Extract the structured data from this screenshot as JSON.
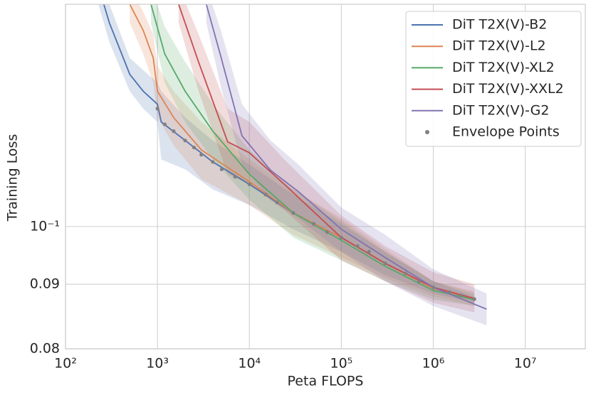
{
  "chart_data": {
    "type": "line",
    "xlabel": "Peta FLOPS",
    "ylabel": "Training Loss",
    "xscale": "log",
    "yscale": "log",
    "grid": true,
    "legend": "upper right",
    "xlim": [
      100,
      45000000
    ],
    "xticks": [
      {
        "value": 100,
        "label": "10²"
      },
      {
        "value": 1000,
        "label": "10³"
      },
      {
        "value": 10000,
        "label": "10⁴"
      },
      {
        "value": 100000,
        "label": "10⁵"
      },
      {
        "value": 1000000,
        "label": "10⁶"
      },
      {
        "value": 10000000,
        "label": "10⁷"
      }
    ],
    "ylim": [
      0.08,
      0.15
    ],
    "yticks": [
      0.08,
      0.09,
      {
        "value": 0.1,
        "label": "10⁻¹"
      }
    ],
    "series": [
      {
        "name": "DiT T2X(V)-B2",
        "color": "#4c72b0",
        "x": [
          200,
          300,
          500,
          700,
          1000,
          1100,
          2000,
          4000,
          10000,
          30000,
          100000,
          300000,
          1000000,
          2800000
        ],
        "values": [
          0.16,
          0.145,
          0.132,
          0.128,
          0.125,
          0.121,
          0.117,
          0.1125,
          0.108,
          0.1025,
          0.098,
          0.0935,
          0.0895,
          0.0875
        ],
        "lower": [
          0.155,
          0.14,
          0.128,
          0.124,
          0.121,
          0.113,
          0.111,
          0.107,
          0.104,
          0.0995,
          0.0955,
          0.0915,
          0.0885,
          0.087
        ],
        "upper": [
          0.165,
          0.15,
          0.136,
          0.133,
          0.13,
          0.128,
          0.122,
          0.117,
          0.112,
          0.106,
          0.1005,
          0.0955,
          0.0905,
          0.088
        ]
      },
      {
        "name": "DiT T2X(V)-L2",
        "color": "#dd8452",
        "x": [
          500,
          700,
          900,
          1000,
          1500,
          3000,
          10000,
          30000,
          100000,
          300000,
          1000000,
          2800000
        ],
        "values": [
          0.15,
          0.143,
          0.136,
          0.128,
          0.122,
          0.115,
          0.1085,
          0.1025,
          0.098,
          0.0935,
          0.0893,
          0.0877
        ],
        "lower": [
          0.145,
          0.137,
          0.13,
          0.122,
          0.116,
          0.109,
          0.104,
          0.0985,
          0.0945,
          0.091,
          0.088,
          0.0865
        ],
        "upper": [
          0.155,
          0.148,
          0.142,
          0.134,
          0.128,
          0.121,
          0.113,
          0.107,
          0.1015,
          0.096,
          0.0905,
          0.0888
        ]
      },
      {
        "name": "DiT T2X(V)-XL2",
        "color": "#55a868",
        "x": [
          850,
          1200,
          2000,
          4000,
          10000,
          30000,
          100000,
          300000,
          1000000,
          2800000
        ],
        "values": [
          0.15,
          0.137,
          0.128,
          0.119,
          0.11,
          0.1025,
          0.0975,
          0.093,
          0.089,
          0.0875
        ],
        "lower": [
          0.145,
          0.13,
          0.121,
          0.113,
          0.105,
          0.098,
          0.094,
          0.0905,
          0.0875,
          0.0865
        ],
        "upper": [
          0.155,
          0.144,
          0.135,
          0.125,
          0.115,
          0.107,
          0.101,
          0.0955,
          0.0905,
          0.0885
        ]
      },
      {
        "name": "DiT T2X(V)-XXL2",
        "color": "#c44e52",
        "x": [
          1700,
          2800,
          5800,
          10000,
          24000,
          100000,
          300000,
          1000000,
          2800000
        ],
        "values": [
          0.15,
          0.135,
          0.1167,
          0.1144,
          0.108,
          0.098,
          0.0935,
          0.0895,
          0.0877
        ],
        "lower": [
          0.145,
          0.128,
          0.11,
          0.108,
          0.103,
          0.094,
          0.0905,
          0.087,
          0.0855
        ],
        "upper": [
          0.155,
          0.142,
          0.124,
          0.121,
          0.113,
          0.102,
          0.0965,
          0.092,
          0.09
        ]
      },
      {
        "name": "DiT T2X(V)-G2",
        "color": "#8172b3",
        "x": [
          3400,
          4900,
          8300,
          17000,
          34000,
          100000,
          300000,
          1000000,
          3800000
        ],
        "values": [
          0.15,
          0.1363,
          0.118,
          0.1108,
          0.1066,
          0.0995,
          0.0945,
          0.0895,
          0.086
        ],
        "lower": [
          0.145,
          0.129,
          0.112,
          0.105,
          0.1015,
          0.0955,
          0.0905,
          0.0865,
          0.0835
        ],
        "upper": [
          0.155,
          0.143,
          0.125,
          0.117,
          0.112,
          0.1035,
          0.0985,
          0.0925,
          0.0885
        ]
      }
    ],
    "envelope": {
      "name": "Envelope Points",
      "color": "#808080",
      "x": [
        1000,
        1200,
        1500,
        2000,
        2500,
        3000,
        4000,
        5000,
        7000,
        10000,
        15000,
        20000,
        30000,
        50000,
        70000,
        100000,
        150000,
        200000,
        300000,
        500000,
        700000,
        1000000,
        1500000,
        2000000,
        2800000
      ],
      "values": [
        0.124,
        0.1205,
        0.119,
        0.117,
        0.1155,
        0.114,
        0.1125,
        0.111,
        0.1095,
        0.108,
        0.106,
        0.1045,
        0.1025,
        0.1005,
        0.099,
        0.098,
        0.0965,
        0.0955,
        0.0935,
        0.0918,
        0.0905,
        0.0895,
        0.0887,
        0.0882,
        0.0876
      ]
    }
  }
}
